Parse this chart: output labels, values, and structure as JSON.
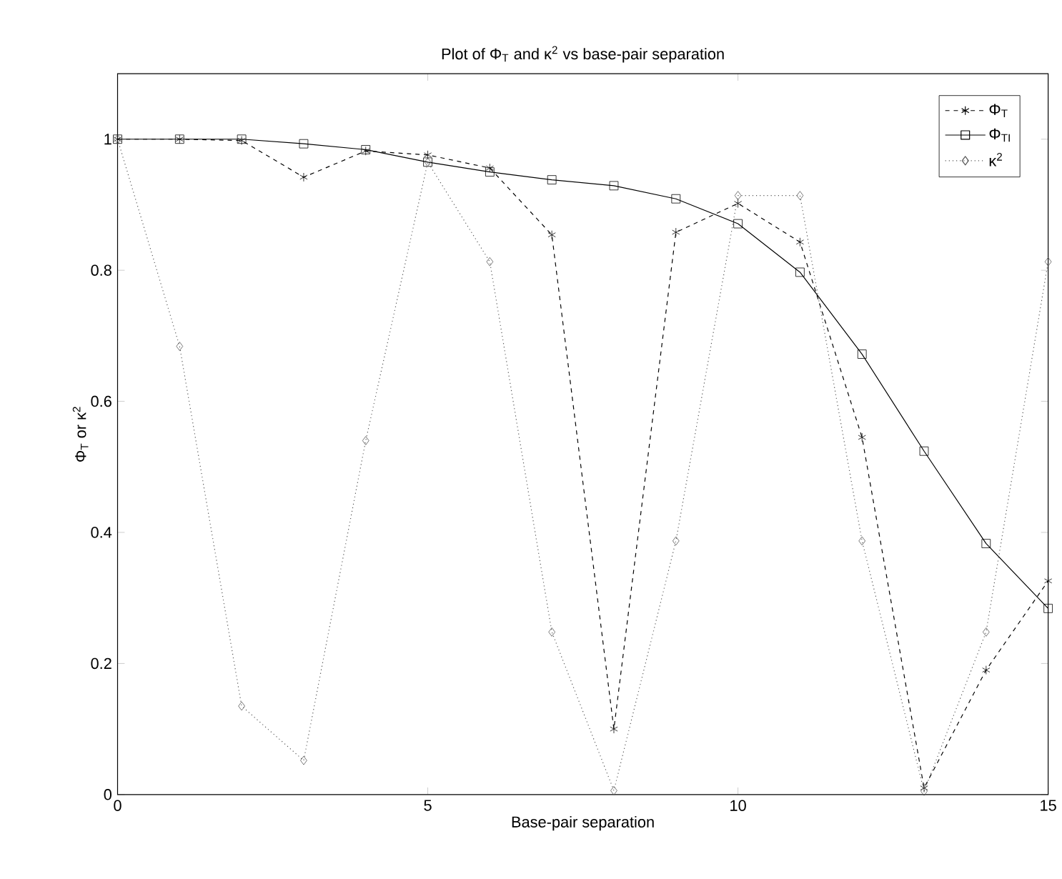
{
  "chart_data": {
    "type": "line",
    "title": "Plot of Φ$_{T}$ and κ$^{2}$ vs base-pair separation",
    "xlabel": "Base-pair separation",
    "ylabel": "Φ$_{T}$ or κ$^{2}$",
    "x": [
      0,
      1,
      2,
      3,
      4,
      5,
      6,
      7,
      8,
      9,
      10,
      11,
      12,
      13,
      14,
      15
    ],
    "series": [
      {
        "name": "Φ$_{T}$",
        "color": "#000000",
        "marker": "cross",
        "line_style": "dashed",
        "values": [
          1.0,
          1.0,
          0.998,
          0.942,
          0.982,
          0.976,
          0.956,
          0.854,
          0.1,
          0.858,
          0.902,
          0.843,
          0.545,
          0.01,
          0.19,
          0.326
        ]
      },
      {
        "name": "Φ$_{TI}$",
        "color": "#000000",
        "marker": "square",
        "line_style": "solid",
        "values": [
          1.0,
          1.0,
          1.0,
          0.993,
          0.984,
          0.965,
          0.95,
          0.938,
          0.929,
          0.909,
          0.871,
          0.797,
          0.672,
          0.524,
          0.383,
          0.284
        ]
      },
      {
        "name": "κ$^{2}$",
        "color": "#555555",
        "marker": "diamond",
        "line_style": "dotted",
        "values": [
          1.0,
          0.684,
          0.135,
          0.052,
          0.54,
          0.965,
          0.813,
          0.248,
          0.006,
          0.387,
          0.914,
          0.914,
          0.387,
          0.005,
          0.248,
          0.813
        ]
      }
    ],
    "xlim": [
      0,
      15
    ],
    "ylim": [
      0,
      1.1
    ],
    "xticks": [
      0,
      5,
      10,
      15
    ],
    "yticks": [
      0,
      0.2,
      0.4,
      0.6,
      0.8,
      1
    ],
    "legend": "top right"
  }
}
